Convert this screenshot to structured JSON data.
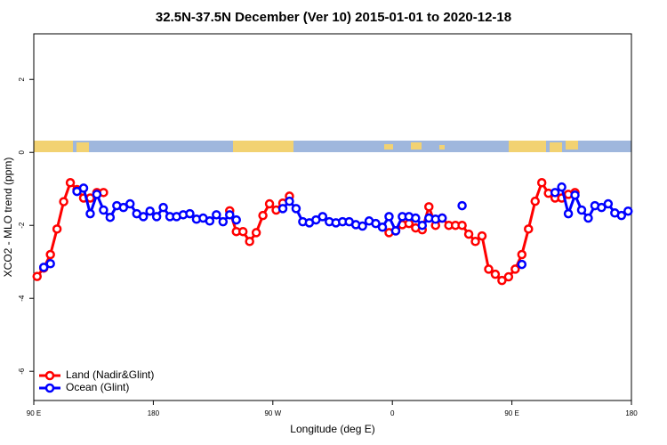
{
  "chart_data": {
    "type": "line",
    "title": "32.5N-37.5N December (Ver 10)   2015-01-01 to 2020-12-18",
    "x_label": "Longitude (deg E)",
    "y_label": "XCO2 - MLO trend (ppm)",
    "xlim": [
      90,
      540
    ],
    "ylim": [
      -6.8,
      3.25
    ],
    "xticks": [
      {
        "value": 90,
        "label": "90 E"
      },
      180,
      {
        "value": 270,
        "label": "90 W"
      },
      {
        "value": 360,
        "label": "0"
      },
      {
        "value": 450,
        "label": "90 E"
      },
      {
        "value": 540,
        "label": "180"
      }
    ],
    "yticks": [
      -6,
      -4,
      -2,
      0,
      2
    ],
    "legend": "bottom-left",
    "x": [
      92.5,
      97.5,
      102.5,
      107.5,
      112.5,
      117.5,
      122.5,
      127.5,
      132.5,
      137.5,
      142.5,
      147.5,
      152.5,
      157.5,
      162.5,
      167.5,
      172.5,
      177.5,
      182.5,
      187.5,
      192.5,
      197.5,
      202.5,
      207.5,
      212.5,
      217.5,
      222.5,
      227.5,
      232.5,
      237.5,
      242.5,
      247.5,
      252.5,
      257.5,
      262.5,
      267.5,
      272.5,
      277.5,
      282.5,
      287.5,
      292.5,
      297.5,
      302.5,
      307.5,
      312.5,
      317.5,
      322.5,
      327.5,
      332.5,
      337.5,
      342.5,
      347.5,
      352.5,
      357.5,
      362.5,
      367.5,
      372.5,
      377.5,
      382.5,
      387.5,
      392.5,
      397.5,
      402.5,
      407.5,
      412.5,
      417.5,
      422.5,
      427.5,
      432.5,
      437.5,
      442.5,
      447.5,
      452.5,
      457.5,
      462.5,
      467.5,
      472.5,
      477.5,
      482.5,
      487.5,
      492.5,
      497.5,
      502.5,
      507.5,
      512.5,
      517.5,
      522.5,
      527.5,
      532.5,
      537.5
    ],
    "series": [
      {
        "name": "Land (Nadir&Glint)",
        "color": "#ff0000",
        "values": [
          -3.4,
          -3.17,
          -2.8,
          -2.1,
          -1.35,
          -0.83,
          -1.02,
          -1.25,
          -1.25,
          -1.1,
          -1.1,
          null,
          null,
          null,
          null,
          null,
          null,
          null,
          null,
          null,
          null,
          null,
          null,
          null,
          null,
          null,
          null,
          null,
          null,
          -1.6,
          -2.17,
          -2.17,
          -2.44,
          -2.2,
          -1.73,
          -1.41,
          -1.58,
          -1.39,
          -1.2,
          null,
          null,
          null,
          null,
          null,
          null,
          null,
          null,
          null,
          null,
          null,
          null,
          null,
          null,
          -2.2,
          -2.15,
          -1.98,
          -1.95,
          -2.07,
          -2.12,
          -1.49,
          -2.0,
          -1.8,
          -2.0,
          -2.0,
          -2.0,
          -2.24,
          -2.44,
          -2.29,
          -3.2,
          -3.34,
          -3.51,
          -3.41,
          -3.2,
          -2.8,
          -2.1,
          -1.34,
          -0.83,
          -1.12,
          -1.25,
          -1.25,
          -1.15,
          -1.1,
          null,
          null,
          null,
          null,
          null,
          null,
          null,
          null
        ]
      },
      {
        "name": "Ocean (Glint)",
        "color": "#0000ff",
        "values": [
          null,
          -3.15,
          -3.05,
          null,
          null,
          null,
          -1.07,
          -0.98,
          -1.68,
          -1.15,
          -1.58,
          -1.78,
          -1.46,
          -1.51,
          -1.41,
          -1.68,
          -1.76,
          -1.61,
          -1.76,
          -1.51,
          -1.76,
          -1.76,
          -1.71,
          -1.68,
          -1.83,
          -1.8,
          -1.88,
          -1.71,
          -1.9,
          -1.71,
          -1.85,
          null,
          null,
          null,
          null,
          null,
          null,
          -1.54,
          -1.34,
          -1.54,
          -1.9,
          -1.93,
          -1.85,
          -1.76,
          -1.9,
          -1.93,
          -1.9,
          -1.9,
          -1.98,
          -2.02,
          -1.88,
          -1.95,
          -2.05,
          -1.76,
          -2.15,
          -1.76,
          -1.76,
          -1.8,
          -2.0,
          -1.8,
          -1.83,
          -1.8,
          null,
          null,
          -1.46,
          null,
          null,
          null,
          null,
          null,
          null,
          null,
          null,
          -3.07,
          null,
          null,
          null,
          null,
          -1.1,
          -0.95,
          -1.68,
          -1.17,
          -1.58,
          -1.8,
          -1.46,
          -1.51,
          -1.41,
          -1.66,
          -1.73,
          -1.61
        ]
      }
    ]
  }
}
